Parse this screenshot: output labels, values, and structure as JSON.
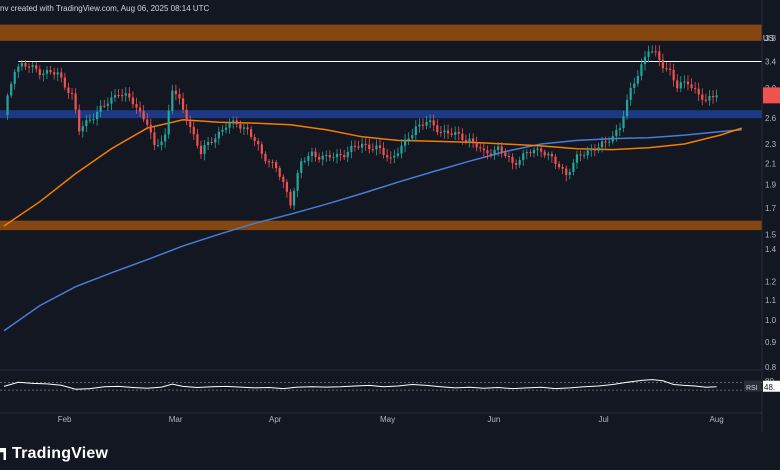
{
  "header": {
    "credit": "nv created with TradingView.com, Aug 06, 2025 08:14 UTC"
  },
  "currency_label": "US",
  "footer": {
    "logo_text": "TradingView"
  },
  "colors": {
    "background": "#131722",
    "bull": "#26a69a",
    "bear": "#ef5350",
    "ma_orange": "#f57c00",
    "ma_blue": "#4a7bd6",
    "zone_orange": "#8a4a12",
    "zone_blue": "#1e3a8a",
    "rsi_line": "#ffffff",
    "price_tag": "#ef5350"
  },
  "chart_data": {
    "type": "candlestick",
    "title": "",
    "x_axis": {
      "ticks": [
        "Feb",
        "Mar",
        "Apr",
        "May",
        "Jun",
        "Jul",
        "Aug"
      ]
    },
    "y_axis": {
      "scale": "log",
      "ticks": [
        "3.8",
        "3.4",
        "3.0",
        "2.6",
        "2.3",
        "2.1",
        "1.9",
        "1.7",
        "1.5",
        "1.4",
        "1.2",
        "1.1",
        "1.0",
        "0.9",
        "0.8"
      ],
      "tick_values": [
        3.8,
        3.4,
        3.0,
        2.6,
        2.3,
        2.1,
        1.9,
        1.7,
        1.5,
        1.4,
        1.2,
        1.1,
        1.0,
        0.9,
        0.8
      ],
      "range": [
        0.8,
        4.1
      ]
    },
    "zones": [
      {
        "kind": "supply",
        "from": 3.75,
        "to": 4.05,
        "color": "#8a4a12"
      },
      {
        "kind": "support",
        "from": 2.6,
        "to": 2.7,
        "color": "#1e3a8a"
      },
      {
        "kind": "demand",
        "from": 1.53,
        "to": 1.6,
        "color": "#8a4a12"
      }
    ],
    "horizontal_line": {
      "value": 3.4,
      "color": "#ffffff"
    },
    "ma_orange": [
      [
        0,
        1.56
      ],
      [
        10,
        1.75
      ],
      [
        20,
        2.0
      ],
      [
        30,
        2.25
      ],
      [
        40,
        2.48
      ],
      [
        50,
        2.58
      ],
      [
        60,
        2.55
      ],
      [
        70,
        2.54
      ],
      [
        80,
        2.52
      ],
      [
        90,
        2.46
      ],
      [
        100,
        2.38
      ],
      [
        110,
        2.34
      ],
      [
        120,
        2.33
      ],
      [
        130,
        2.32
      ],
      [
        140,
        2.3
      ],
      [
        150,
        2.28
      ],
      [
        160,
        2.25
      ],
      [
        170,
        2.24
      ],
      [
        180,
        2.26
      ],
      [
        190,
        2.3
      ],
      [
        200,
        2.4
      ],
      [
        206,
        2.48
      ]
    ],
    "ma_blue": [
      [
        0,
        0.95
      ],
      [
        10,
        1.07
      ],
      [
        20,
        1.17
      ],
      [
        30,
        1.25
      ],
      [
        40,
        1.33
      ],
      [
        50,
        1.42
      ],
      [
        60,
        1.5
      ],
      [
        70,
        1.58
      ],
      [
        80,
        1.65
      ],
      [
        90,
        1.73
      ],
      [
        100,
        1.82
      ],
      [
        110,
        1.92
      ],
      [
        120,
        2.02
      ],
      [
        130,
        2.12
      ],
      [
        140,
        2.22
      ],
      [
        150,
        2.3
      ],
      [
        160,
        2.34
      ],
      [
        170,
        2.36
      ],
      [
        180,
        2.37
      ],
      [
        190,
        2.4
      ],
      [
        200,
        2.44
      ],
      [
        206,
        2.46
      ]
    ],
    "candles_anchor_close": [
      [
        0,
        2.62
      ],
      [
        3,
        3.3
      ],
      [
        5,
        3.35
      ],
      [
        10,
        3.25
      ],
      [
        15,
        3.2
      ],
      [
        19,
        2.9
      ],
      [
        21,
        2.45
      ],
      [
        24,
        2.6
      ],
      [
        28,
        2.75
      ],
      [
        32,
        2.95
      ],
      [
        36,
        2.8
      ],
      [
        40,
        2.55
      ],
      [
        42,
        2.25
      ],
      [
        45,
        2.4
      ],
      [
        47,
        3.0
      ],
      [
        49,
        2.8
      ],
      [
        52,
        2.5
      ],
      [
        55,
        2.2
      ],
      [
        58,
        2.35
      ],
      [
        62,
        2.5
      ],
      [
        65,
        2.55
      ],
      [
        68,
        2.45
      ],
      [
        72,
        2.2
      ],
      [
        76,
        2.05
      ],
      [
        80,
        1.75
      ],
      [
        83,
        2.1
      ],
      [
        86,
        2.2
      ],
      [
        90,
        2.15
      ],
      [
        95,
        2.2
      ],
      [
        100,
        2.3
      ],
      [
        104,
        2.25
      ],
      [
        108,
        2.15
      ],
      [
        112,
        2.3
      ],
      [
        115,
        2.5
      ],
      [
        118,
        2.55
      ],
      [
        122,
        2.45
      ],
      [
        126,
        2.4
      ],
      [
        130,
        2.35
      ],
      [
        134,
        2.2
      ],
      [
        138,
        2.25
      ],
      [
        142,
        2.1
      ],
      [
        146,
        2.2
      ],
      [
        150,
        2.25
      ],
      [
        154,
        2.1
      ],
      [
        157,
        2.0
      ],
      [
        160,
        2.15
      ],
      [
        164,
        2.25
      ],
      [
        168,
        2.3
      ],
      [
        172,
        2.5
      ],
      [
        175,
        2.95
      ],
      [
        178,
        3.35
      ],
      [
        180,
        3.6
      ],
      [
        182,
        3.5
      ],
      [
        184,
        3.35
      ],
      [
        186,
        3.25
      ],
      [
        188,
        3.0
      ],
      [
        191,
        3.1
      ],
      [
        194,
        2.9
      ],
      [
        196,
        2.8
      ],
      [
        199,
        2.95
      ]
    ],
    "rsi": {
      "levels": [
        30,
        70
      ],
      "labels": [
        "80.",
        "40."
      ],
      "label_values": [
        80,
        40
      ],
      "current": "48.",
      "current_value": 48,
      "tag": "RSI",
      "series": [
        [
          0,
          50
        ],
        [
          4,
          72
        ],
        [
          8,
          66
        ],
        [
          12,
          63
        ],
        [
          16,
          56
        ],
        [
          20,
          35
        ],
        [
          24,
          38
        ],
        [
          28,
          48
        ],
        [
          32,
          50
        ],
        [
          36,
          44
        ],
        [
          40,
          40
        ],
        [
          44,
          46
        ],
        [
          47,
          62
        ],
        [
          50,
          50
        ],
        [
          54,
          44
        ],
        [
          58,
          48
        ],
        [
          62,
          50
        ],
        [
          66,
          46
        ],
        [
          70,
          42
        ],
        [
          74,
          44
        ],
        [
          78,
          38
        ],
        [
          82,
          46
        ],
        [
          86,
          48
        ],
        [
          90,
          46
        ],
        [
          94,
          48
        ],
        [
          98,
          52
        ],
        [
          102,
          55
        ],
        [
          106,
          48
        ],
        [
          110,
          52
        ],
        [
          114,
          60
        ],
        [
          118,
          55
        ],
        [
          122,
          48
        ],
        [
          126,
          42
        ],
        [
          130,
          45
        ],
        [
          134,
          40
        ],
        [
          138,
          44
        ],
        [
          142,
          38
        ],
        [
          146,
          42
        ],
        [
          150,
          45
        ],
        [
          154,
          38
        ],
        [
          158,
          42
        ],
        [
          162,
          48
        ],
        [
          166,
          52
        ],
        [
          170,
          60
        ],
        [
          174,
          72
        ],
        [
          178,
          82
        ],
        [
          181,
          86
        ],
        [
          184,
          80
        ],
        [
          187,
          60
        ],
        [
          190,
          55
        ],
        [
          193,
          52
        ],
        [
          196,
          45
        ],
        [
          199,
          48
        ]
      ]
    }
  }
}
